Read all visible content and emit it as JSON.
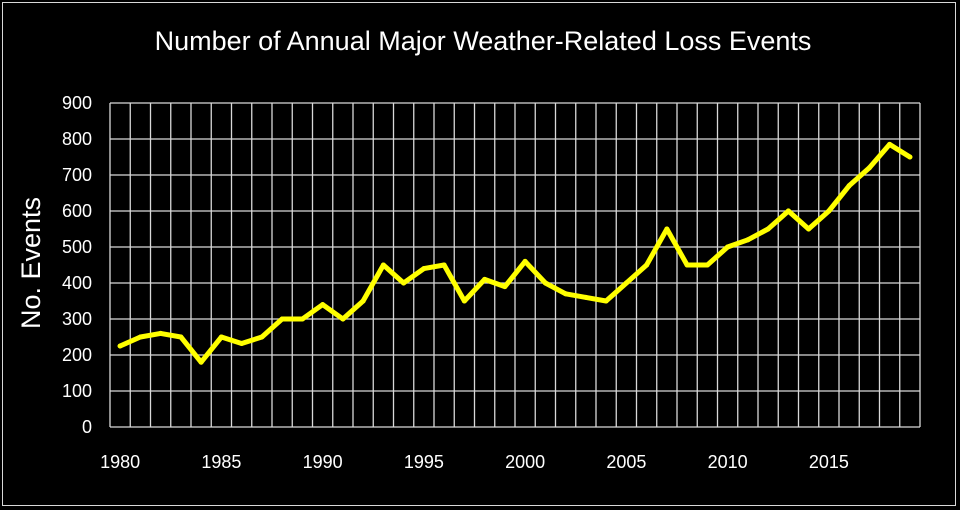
{
  "chart_data": {
    "type": "line",
    "title": "Number of Annual  Major Weather-Related Loss Events",
    "xlabel": "",
    "ylabel": "No. Events",
    "xlim": [
      1980,
      2019
    ],
    "ylim": [
      0,
      900
    ],
    "x_ticks": [
      1980,
      1985,
      1990,
      1995,
      2000,
      2005,
      2010,
      2015
    ],
    "y_ticks": [
      0,
      100,
      200,
      300,
      400,
      500,
      600,
      700,
      800,
      900
    ],
    "grid": true,
    "legend": "none",
    "colors": {
      "background": "#000000",
      "line": "#ffff00",
      "grid": "#d9d9d9",
      "text": "#ffffff"
    },
    "series": [
      {
        "x": [
          1980,
          1981,
          1982,
          1983,
          1984,
          1985,
          1986,
          1987,
          1988,
          1989,
          1990,
          1991,
          1992,
          1993,
          1994,
          1995,
          1996,
          1997,
          1998,
          1999,
          2000,
          2001,
          2002,
          2003,
          2004,
          2005,
          2006,
          2007,
          2008,
          2009,
          2010,
          2011,
          2012,
          2013,
          2014,
          2015,
          2016,
          2017,
          2018,
          2019
        ],
        "values": [
          225,
          250,
          260,
          250,
          180,
          250,
          232,
          250,
          300,
          300,
          340,
          300,
          350,
          450,
          400,
          440,
          450,
          350,
          410,
          390,
          460,
          400,
          370,
          360,
          350,
          400,
          450,
          550,
          450,
          450,
          500,
          520,
          550,
          600,
          550,
          600,
          670,
          720,
          785,
          750
        ]
      }
    ]
  }
}
